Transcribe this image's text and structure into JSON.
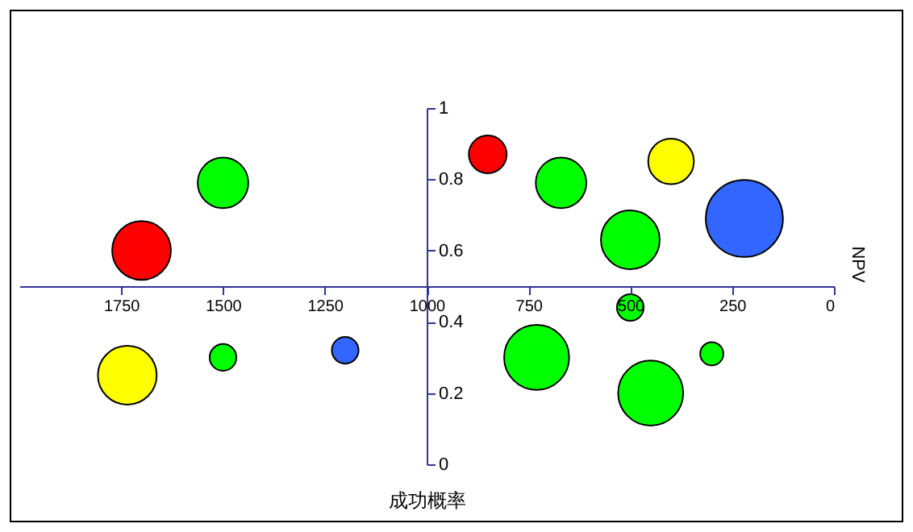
{
  "chart_data": {
    "type": "bubble",
    "xlabel": "成功概率",
    "ylabel": "NPV",
    "x": [
      1700,
      1500,
      1735,
      1500,
      1200,
      850,
      670,
      400,
      220,
      500,
      500,
      730,
      450,
      300
    ],
    "values": [
      0.6,
      0.79,
      0.25,
      0.3,
      0.32,
      0.87,
      0.79,
      0.85,
      0.69,
      0.63,
      0.44,
      0.3,
      0.2,
      0.31
    ],
    "sizes": [
      0.58,
      0.43,
      0.58,
      0.12,
      0.12,
      0.24,
      0.43,
      0.35,
      1,
      0.58,
      0.12,
      0.71,
      0.71,
      0.09
    ],
    "colors": [
      "#ff0000",
      "#00ff00",
      "#ffff00",
      "#00ff00",
      "#3366ff",
      "#ff0000",
      "#00ff00",
      "#ffff00",
      "#3366ff",
      "#00ff00",
      "#00ff00",
      "#00ff00",
      "#00ff00",
      "#00ff00"
    ],
    "xlim": [
      2000,
      0
    ],
    "xticks": [
      1750,
      1500,
      1250,
      1000,
      750,
      500,
      250,
      0
    ],
    "ylim": [
      0,
      1
    ],
    "yticks": [
      0,
      0.2,
      0.4,
      0.6,
      0.8,
      1
    ],
    "grid": false
  }
}
